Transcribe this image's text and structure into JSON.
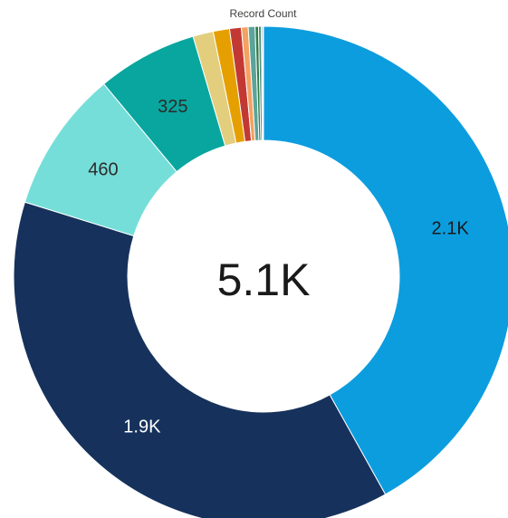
{
  "chart_data": {
    "type": "pie",
    "title": "Record Count",
    "center_label": "5.1K",
    "total": 5100,
    "slices": [
      {
        "label": "2.1K",
        "value": 2100,
        "color": "#0c9ddf",
        "label_color": "#1a1a1a",
        "show_label": true
      },
      {
        "label": "1.9K",
        "value": 1900,
        "color": "#16325c",
        "label_color": "#ffffff",
        "show_label": true
      },
      {
        "label": "460",
        "value": 460,
        "color": "#76ded9",
        "label_color": "#2b2b2b",
        "show_label": true
      },
      {
        "label": "325",
        "value": 325,
        "color": "#08a69e",
        "label_color": "#2b2b2b",
        "show_label": true
      },
      {
        "label": "",
        "value": 66,
        "color": "#e2ce7d",
        "label_color": "#2b2b2b",
        "show_label": false
      },
      {
        "label": "",
        "value": 53,
        "color": "#e69f00",
        "label_color": "#2b2b2b",
        "show_label": false
      },
      {
        "label": "",
        "value": 38,
        "color": "#c23934",
        "label_color": "#2b2b2b",
        "show_label": false
      },
      {
        "label": "",
        "value": 22,
        "color": "#f4a261",
        "label_color": "#2b2b2b",
        "show_label": false
      },
      {
        "label": "",
        "value": 22,
        "color": "#5aa49a",
        "label_color": "#2b2b2b",
        "show_label": false
      },
      {
        "label": "",
        "value": 11,
        "color": "#2f7d4a",
        "label_color": "#2b2b2b",
        "show_label": false
      },
      {
        "label": "",
        "value": 9,
        "color": "#4a8f7a",
        "label_color": "#2b2b2b",
        "show_label": false
      },
      {
        "label": "",
        "value": 4,
        "color": "#3c6e9e",
        "label_color": "#2b2b2b",
        "show_label": false
      },
      {
        "label": "",
        "value": 3,
        "color": "#8ec9e8",
        "label_color": "#2b2b2b",
        "show_label": false
      }
    ]
  }
}
